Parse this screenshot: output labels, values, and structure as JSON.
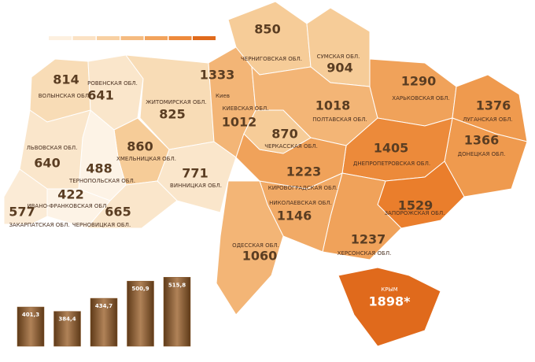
{
  "legend": {
    "colors": [
      "#fdf0e0",
      "#fbe2c4",
      "#f8d0a2",
      "#f5bb80",
      "#f2a35c",
      "#ee8a3c",
      "#e06a1c"
    ]
  },
  "map": {
    "regions": [
      {
        "name": "ВОЛЫНСКАЯ ОБЛ.",
        "value": 814,
        "color": "#f8dcb6"
      },
      {
        "name": "РОВЕНСКАЯ ОБЛ.",
        "value": 641,
        "color": "#fae6cb"
      },
      {
        "name": "ЖИТОМИРСКАЯ ОБЛ.",
        "value": 825,
        "color": "#f8dcb6"
      },
      {
        "name": "Киев",
        "value": 1333,
        "color": "#ef9c55"
      },
      {
        "name": "КИЕВСКАЯ ОБЛ.",
        "value": 1012,
        "color": "#f3b576"
      },
      {
        "name": "ЧЕРНИГОВСКАЯ ОБЛ.",
        "value": 850,
        "color": "#f6cc98"
      },
      {
        "name": "СУМСКАЯ ОБЛ.",
        "value": 904,
        "color": "#f6cc98"
      },
      {
        "name": "ПОЛТАВСКАЯ ОБЛ.",
        "value": 1018,
        "color": "#f3b576"
      },
      {
        "name": "ХАРЬКОВСКАЯ ОБЛ.",
        "value": 1290,
        "color": "#f0a25a"
      },
      {
        "name": "ЛУГАНСКАЯ ОБЛ.",
        "value": 1376,
        "color": "#ef9a4e"
      },
      {
        "name": "ДОНЕЦКАЯ ОБЛ.",
        "value": 1366,
        "color": "#ef9a4e"
      },
      {
        "name": "ДНЕПРОПЕТРОВСКАЯ ОБЛ.",
        "value": 1405,
        "color": "#ec8a3a"
      },
      {
        "name": "ЗАПОРОЖСКАЯ ОБЛ.",
        "value": 1529,
        "color": "#ea7e2c"
      },
      {
        "name": "ХЕРСОНСКАЯ ОБЛ.",
        "value": 1237,
        "color": "#f0a25a"
      },
      {
        "name": "НИКОЛАЕВСКАЯ ОБЛ.",
        "value": 1146,
        "color": "#f1aa66"
      },
      {
        "name": "ОДЕССКАЯ ОБЛ.",
        "value": 1060,
        "color": "#f3b576"
      },
      {
        "name": "КИРОВОГРАДСКАЯ ОБЛ.",
        "value": 1223,
        "color": "#f0a25a"
      },
      {
        "name": "ЧЕРКАССКАЯ ОБЛ.",
        "value": 870,
        "color": "#f6cc98"
      },
      {
        "name": "ВИННИЦКАЯ ОБЛ.",
        "value": 771,
        "color": "#fae6cb"
      },
      {
        "name": "ХМЕЛЬНИЦКАЯ ОБЛ.",
        "value": 860,
        "color": "#f6cc98"
      },
      {
        "name": "ТЕРНОПОЛЬСКАЯ ОБЛ.",
        "value": 488,
        "color": "#fdf3e6"
      },
      {
        "name": "ЛЬВОВСКАЯ ОБЛ.",
        "value": 640,
        "color": "#fae6cb"
      },
      {
        "name": "ИВАНО-ФРАНКОВСКАЯ ОБЛ.",
        "value": 422,
        "color": "#fdf3e6"
      },
      {
        "name": "ЗАКАРПАТСКАЯ ОБЛ.",
        "value": 577,
        "color": "#fbebd6"
      },
      {
        "name": "ЧЕРНОВИЦКАЯ ОБЛ.",
        "value": 665,
        "color": "#fae6cb"
      },
      {
        "name": "КРЫМ",
        "value": 1898,
        "value_label": "1898*",
        "color": "#e06a1c"
      }
    ]
  },
  "chart_data": {
    "type": "bar",
    "values": [
      401.3,
      384.4,
      434.7,
      500.9,
      515.8
    ],
    "value_labels": [
      "401,3",
      "384,4",
      "434,7",
      "500,9",
      "515,8"
    ],
    "color": "#8a5a2c"
  }
}
